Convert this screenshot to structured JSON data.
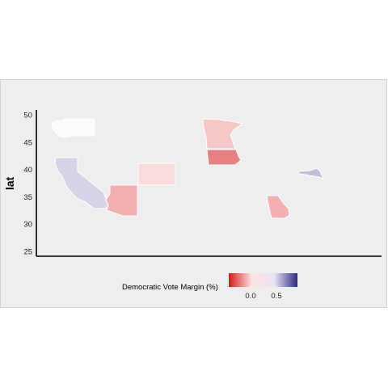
{
  "chart_data": {
    "type": "map",
    "ylabel": "lat",
    "xlabel": "",
    "y_ticks": [
      25,
      30,
      35,
      40,
      45,
      50
    ],
    "legend": {
      "title": "Democratic Vote Margin (%)",
      "ticks": [
        "0.0",
        "0.5"
      ],
      "colors": {
        "low": "#d7191c",
        "mid": "#ffffff",
        "high": "#2c2a83"
      }
    },
    "states": [
      {
        "name": "Washington",
        "margin": 0.02
      },
      {
        "name": "California",
        "margin": 0.2
      },
      {
        "name": "Arizona",
        "margin": -0.35
      },
      {
        "name": "Colorado",
        "margin": -0.15
      },
      {
        "name": "Minnesota",
        "margin": -0.25
      },
      {
        "name": "Iowa",
        "margin": -0.55
      },
      {
        "name": "Georgia",
        "margin": -0.35
      },
      {
        "name": "Massachusetts",
        "margin": 0.3
      }
    ]
  }
}
